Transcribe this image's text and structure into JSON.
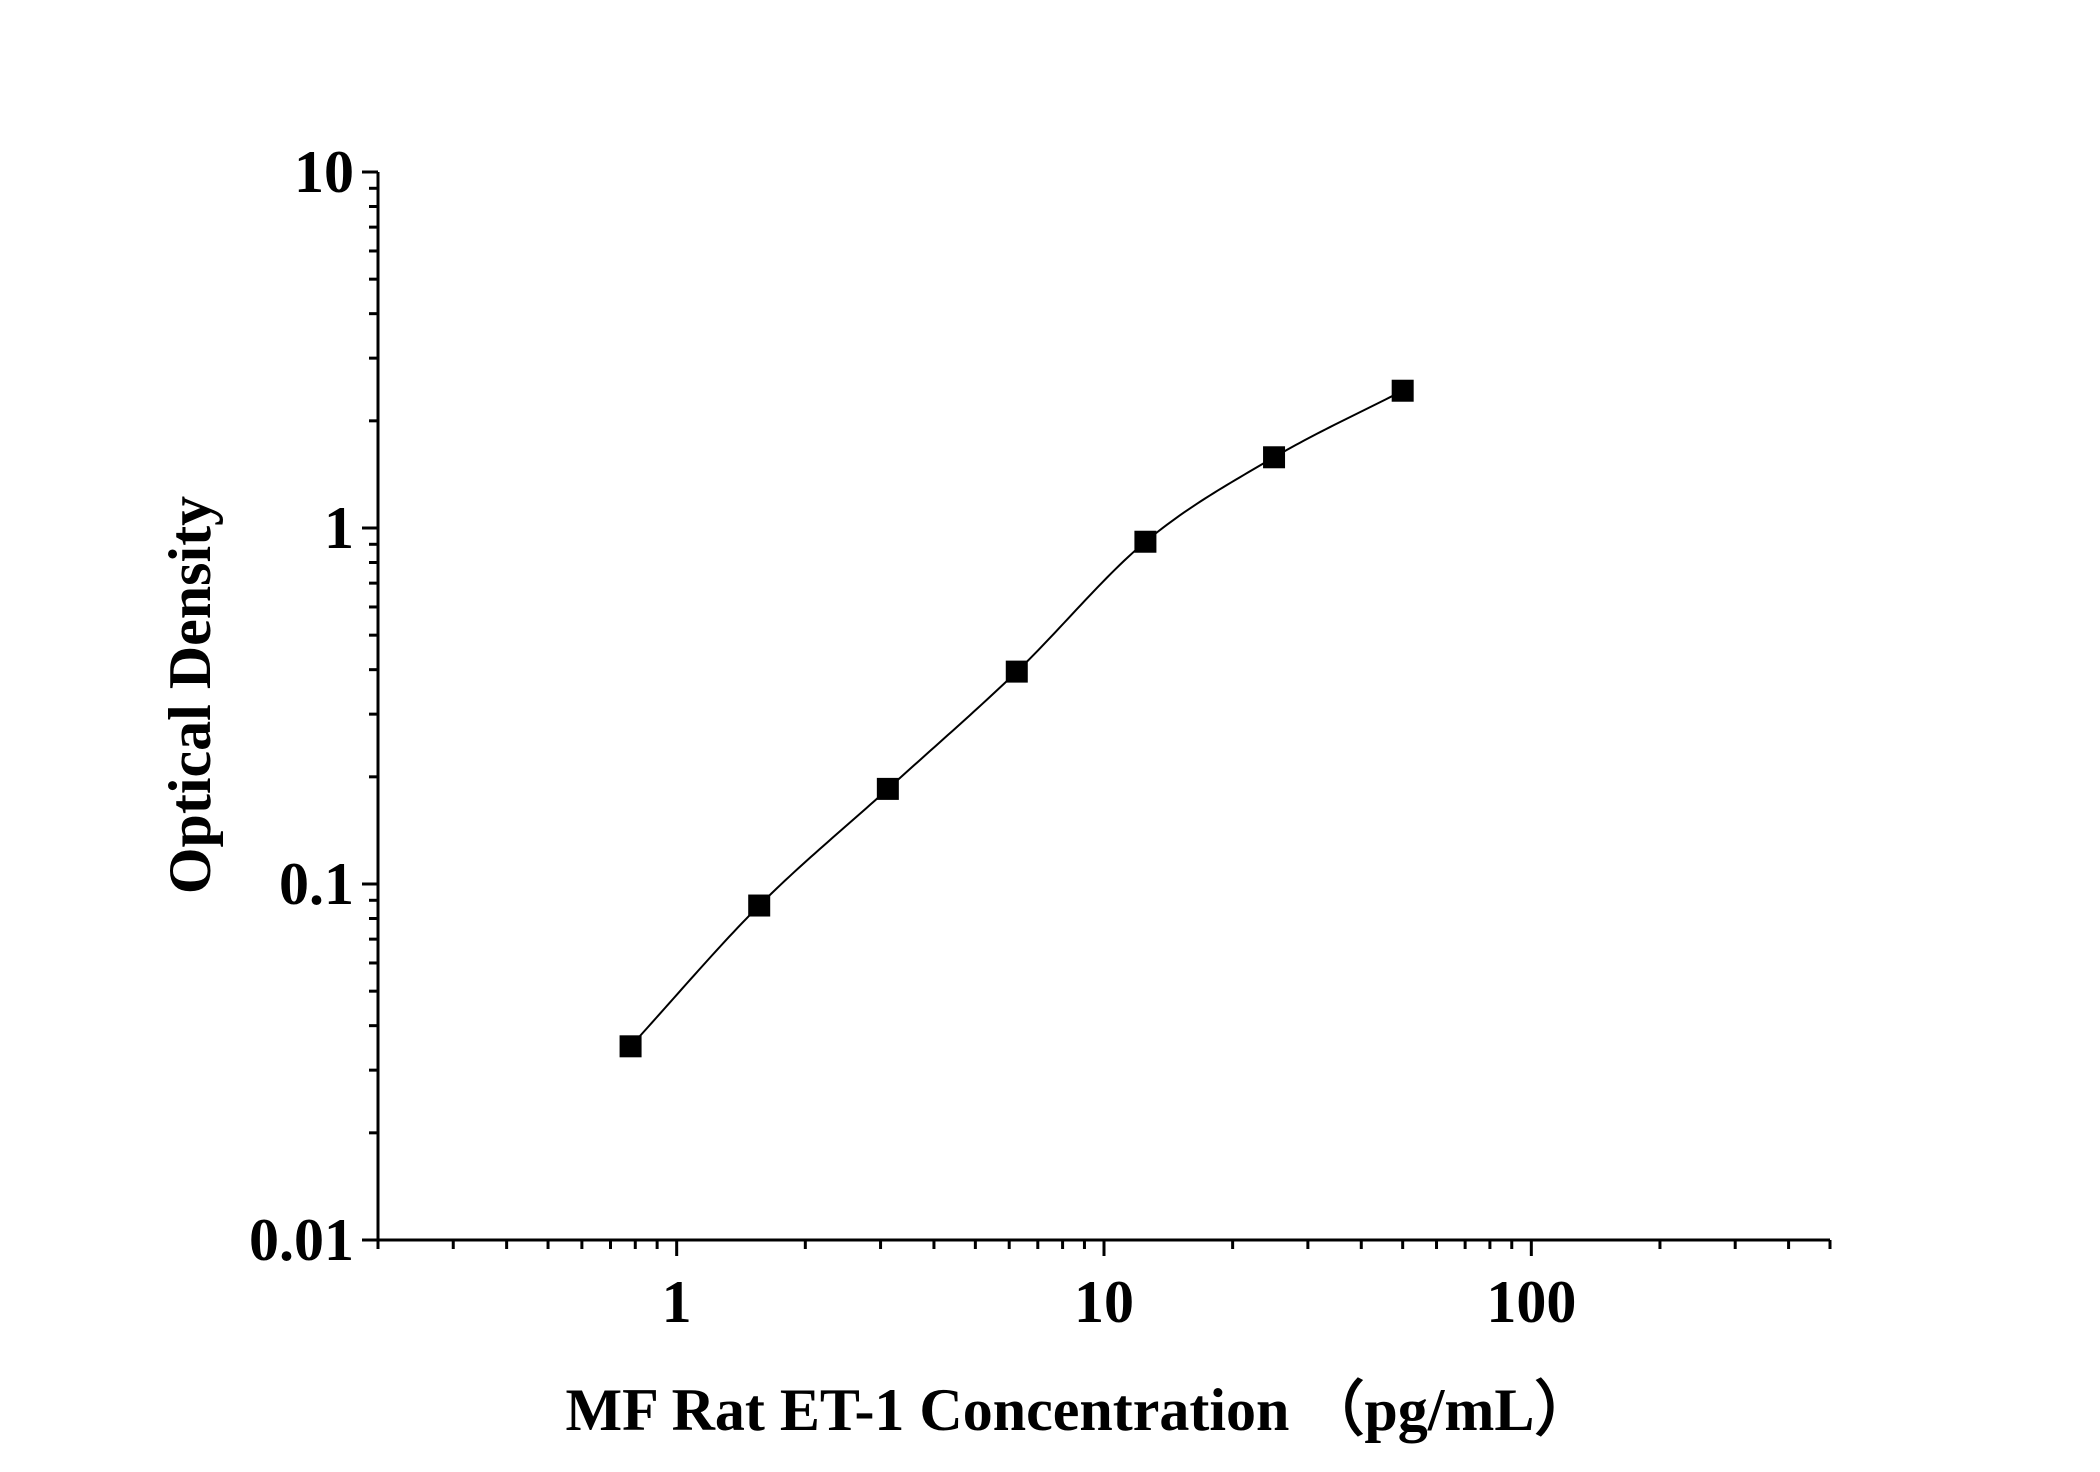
{
  "chart_data": {
    "type": "scatter",
    "title": "",
    "xlabel": "MF Rat ET-1 Concentration （pg/mL）",
    "ylabel": "Optical Density",
    "x_scale": "log",
    "y_scale": "log",
    "xlim": [
      0.2,
      500
    ],
    "ylim": [
      0.01,
      10
    ],
    "x_ticks": [
      {
        "value": 1,
        "label": "1"
      },
      {
        "value": 10,
        "label": "10"
      },
      {
        "value": 100,
        "label": "100"
      }
    ],
    "y_ticks": [
      {
        "value": 0.01,
        "label": "0.01"
      },
      {
        "value": 0.1,
        "label": "0.1"
      },
      {
        "value": 1,
        "label": "1"
      },
      {
        "value": 10,
        "label": "10"
      }
    ],
    "grid": false,
    "legend": "none",
    "marker": "square",
    "colors": {
      "marker": "#000000",
      "curve": "#000000",
      "axis": "#000000"
    },
    "series": [
      {
        "x": [
          0.78,
          1.56,
          3.12,
          6.25,
          12.5,
          25,
          50
        ],
        "y": [
          0.035,
          0.087,
          0.185,
          0.395,
          0.915,
          1.58,
          2.43
        ]
      }
    ],
    "fit_curve": true
  }
}
